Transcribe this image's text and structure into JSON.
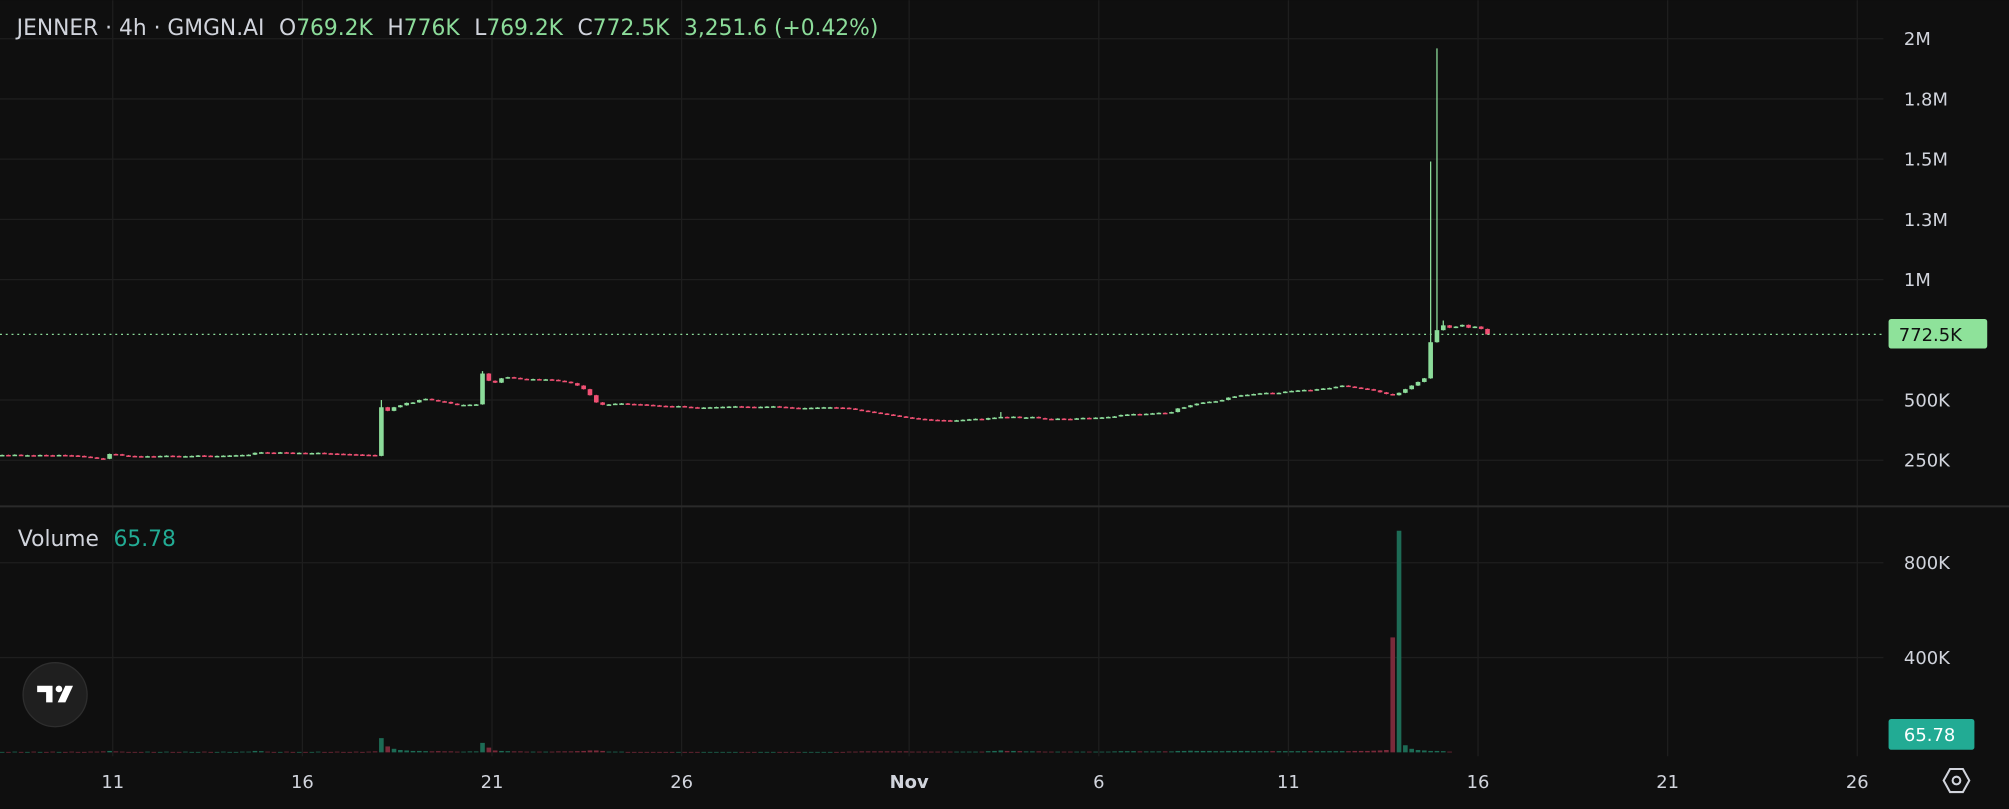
{
  "header": {
    "title": "JENNER · 4h · GMGN.AI",
    "ohlc": [
      {
        "key": "O",
        "value": "769.2K"
      },
      {
        "key": "H",
        "value": "776K"
      },
      {
        "key": "L",
        "value": "769.2K"
      },
      {
        "key": "C",
        "value": "772.5K"
      }
    ],
    "change": "3,251.6 (+0.42%)"
  },
  "volume_legend": {
    "label": "Volume",
    "value": "65.78"
  },
  "price_label": "772.5K",
  "volume_label": "65.78",
  "icons": {
    "logo": "tradingview-logo-icon",
    "settings": "settings-hexagon-icon"
  },
  "colors": {
    "background": "#0f0f0f",
    "up": "#8cdc9a",
    "down": "#ef5073",
    "volume_up": "#1d6b55",
    "volume_down": "#7a2a3a",
    "volume_accent": "#22ab94",
    "text": "#d1d4dc"
  },
  "chart_data": {
    "type": "candlestick",
    "title": "JENNER · 4h · GMGN.AI",
    "start": "2024-10-08 00:00",
    "interval": "4h",
    "units": "K",
    "ylim": [
      250,
      2000
    ],
    "grid": true,
    "y_ticks": [
      {
        "label": "2M",
        "value": 2000
      },
      {
        "label": "1.8M",
        "value": 1750
      },
      {
        "label": "1.5M",
        "value": 1500
      },
      {
        "label": "1.3M",
        "value": 1250
      },
      {
        "label": "1M",
        "value": 1000
      },
      {
        "label": "500K",
        "value": 500
      },
      {
        "label": "250K",
        "value": 250
      }
    ],
    "x_ticks": [
      {
        "label": "11",
        "date": "2024-10-11"
      },
      {
        "label": "16",
        "date": "2024-10-16"
      },
      {
        "label": "21",
        "date": "2024-10-21"
      },
      {
        "label": "26",
        "date": "2024-10-26"
      },
      {
        "label": "Nov",
        "date": "2024-11-01"
      },
      {
        "label": "6",
        "date": "2024-11-06"
      },
      {
        "label": "11",
        "date": "2024-11-11"
      },
      {
        "label": "16",
        "date": "2024-11-16"
      },
      {
        "label": "21",
        "date": "2024-11-21"
      },
      {
        "label": "26",
        "date": "2024-11-26"
      }
    ],
    "last_price": 772.5,
    "closes": [
      272,
      271,
      273,
      270,
      271,
      270,
      272,
      271,
      270,
      272,
      271,
      270,
      268,
      265,
      262,
      258,
      256,
      276,
      275,
      270,
      268,
      267,
      266,
      267,
      266,
      268,
      269,
      268,
      266,
      267,
      268,
      270,
      269,
      267,
      268,
      269,
      270,
      271,
      272,
      273,
      281,
      283,
      282,
      281,
      283,
      282,
      280,
      281,
      279,
      280,
      281,
      279,
      278,
      277,
      276,
      275,
      274,
      273,
      272,
      268,
      470,
      455,
      470,
      478,
      488,
      490,
      500,
      505,
      500,
      495,
      492,
      485,
      480,
      480,
      481,
      482,
      610,
      580,
      572,
      590,
      595,
      592,
      588,
      586,
      587,
      585,
      586,
      584,
      580,
      576,
      570,
      560,
      545,
      520,
      490,
      480,
      482,
      485,
      486,
      484,
      483,
      482,
      480,
      478,
      476,
      475,
      474,
      475,
      472,
      470,
      468,
      469,
      470,
      471,
      472,
      473,
      474,
      473,
      472,
      471,
      472,
      473,
      474,
      472,
      470,
      468,
      466,
      467,
      468,
      469,
      470,
      470,
      469,
      468,
      465,
      460,
      456,
      452,
      448,
      444,
      440,
      436,
      432,
      428,
      425,
      422,
      420,
      418,
      417,
      416,
      415,
      416,
      418,
      420,
      422,
      418,
      425,
      427,
      430,
      428,
      431,
      426,
      428,
      430,
      425,
      422,
      420,
      423,
      422,
      421,
      424,
      426,
      425,
      427,
      428,
      430,
      432,
      438,
      440,
      442,
      441,
      443,
      445,
      447,
      445,
      450,
      465,
      470,
      478,
      485,
      490,
      493,
      495,
      500,
      510,
      515,
      520,
      522,
      525,
      528,
      530,
      527,
      530,
      535,
      538,
      540,
      542,
      540,
      545,
      548,
      550,
      555,
      560,
      556,
      552,
      548,
      545,
      540,
      532,
      525,
      520,
      530,
      545,
      560,
      575,
      590,
      740,
      790,
      810,
      800,
      805,
      812,
      800,
      805,
      795,
      772.5
    ],
    "wick_highs": [
      {
        "date": "2024-10-18 00:00",
        "high": 500
      },
      {
        "date": "2024-10-20 16:00",
        "high": 620
      },
      {
        "date": "2024-11-03 08:00",
        "high": 450
      },
      {
        "date": "2024-11-14 16:00",
        "high": 1490
      },
      {
        "date": "2024-11-14 20:00",
        "high": 1960
      },
      {
        "date": "2024-11-15 00:00",
        "high": 830
      }
    ],
    "volume": {
      "y_ticks": [
        {
          "label": "800K",
          "value": 800
        },
        {
          "label": "400K",
          "value": 400
        }
      ],
      "last": 65.78,
      "values": [
        2,
        2,
        3,
        2,
        2,
        3,
        2,
        2,
        3,
        2,
        2,
        3,
        2,
        2,
        3,
        3,
        4,
        6,
        4,
        3,
        2,
        2,
        2,
        3,
        2,
        2,
        3,
        2,
        2,
        3,
        2,
        2,
        3,
        2,
        2,
        3,
        2,
        2,
        3,
        3,
        6,
        5,
        3,
        2,
        2,
        3,
        2,
        2,
        2,
        2,
        3,
        2,
        2,
        3,
        2,
        2,
        3,
        2,
        3,
        4,
        60,
        25,
        15,
        10,
        8,
        6,
        6,
        5,
        4,
        5,
        4,
        4,
        3,
        3,
        4,
        4,
        40,
        20,
        8,
        6,
        5,
        4,
        4,
        3,
        3,
        3,
        3,
        3,
        4,
        4,
        4,
        5,
        6,
        8,
        8,
        6,
        3,
        3,
        3,
        2,
        2,
        2,
        2,
        2,
        2,
        2,
        2,
        2,
        2,
        2,
        2,
        2,
        2,
        2,
        2,
        2,
        2,
        2,
        2,
        2,
        2,
        2,
        2,
        2,
        2,
        2,
        2,
        2,
        2,
        2,
        2,
        2,
        2,
        2,
        3,
        3,
        4,
        4,
        4,
        4,
        4,
        4,
        4,
        4,
        3,
        3,
        3,
        3,
        3,
        3,
        3,
        3,
        3,
        3,
        3,
        3,
        5,
        6,
        8,
        6,
        6,
        5,
        4,
        4,
        4,
        3,
        3,
        3,
        3,
        3,
        3,
        3,
        3,
        3,
        3,
        3,
        4,
        5,
        5,
        5,
        4,
        4,
        4,
        4,
        4,
        4,
        6,
        6,
        7,
        6,
        6,
        6,
        5,
        5,
        6,
        6,
        6,
        6,
        5,
        5,
        5,
        5,
        5,
        5,
        5,
        5,
        5,
        5,
        5,
        5,
        5,
        5,
        5,
        5,
        6,
        6,
        6,
        7,
        8,
        10,
        485,
        935,
        30,
        15,
        10,
        8,
        6,
        6,
        5,
        3
      ]
    }
  }
}
